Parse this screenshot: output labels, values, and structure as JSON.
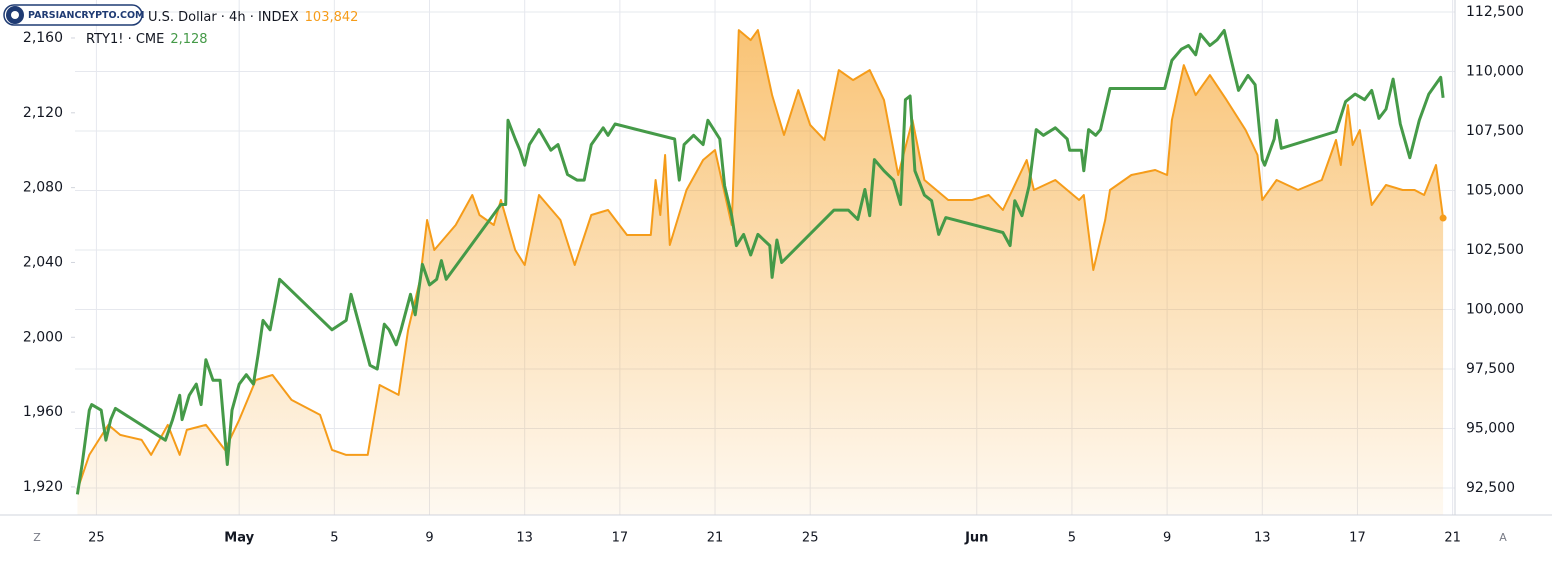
{
  "chart_data": {
    "type": "line",
    "watermark": "PARSIANCRYPTO.COM",
    "scale_buttons": [
      "Z",
      "A"
    ],
    "xlim": [
      -0.9,
      57.1
    ],
    "xticks": [
      {
        "value": 0,
        "label": "25"
      },
      {
        "value": 6,
        "label": "May"
      },
      {
        "value": 10,
        "label": "5"
      },
      {
        "value": 14,
        "label": "9"
      },
      {
        "value": 18,
        "label": "13"
      },
      {
        "value": 22,
        "label": "17"
      },
      {
        "value": 26,
        "label": "21"
      },
      {
        "value": 30,
        "label": "25"
      },
      {
        "value": 37,
        "label": "Jun"
      },
      {
        "value": 41,
        "label": "5"
      },
      {
        "value": 45,
        "label": "9"
      },
      {
        "value": 49,
        "label": "13"
      },
      {
        "value": 53,
        "label": "17"
      },
      {
        "value": 57,
        "label": "21"
      }
    ],
    "ylim": [
      1905,
      2180.3
    ],
    "yticks": [
      {
        "value": 1920,
        "label": "1,920"
      },
      {
        "value": 1960,
        "label": "1,960"
      },
      {
        "value": 2000,
        "label": "2,000"
      },
      {
        "value": 2040,
        "label": "2,040"
      },
      {
        "value": 2080,
        "label": "2,080"
      },
      {
        "value": 2120,
        "label": "2,120"
      },
      {
        "value": 2160,
        "label": "2,160"
      }
    ],
    "y2lim": [
      91366,
      113004
    ],
    "y2ticks": [
      {
        "value": 92500,
        "label": "92,500"
      },
      {
        "value": 95000,
        "label": "95,000"
      },
      {
        "value": 97500,
        "label": "97,500"
      },
      {
        "value": 100000,
        "label": "100,000"
      },
      {
        "value": 102500,
        "label": "102,500"
      },
      {
        "value": 105000,
        "label": "105,000"
      },
      {
        "value": 107500,
        "label": "107,500"
      },
      {
        "value": 110000,
        "label": "110,000"
      },
      {
        "value": 112500,
        "label": "112,500"
      }
    ],
    "grid": true,
    "series": [
      {
        "name": "U.S. Dollar · 4h · INDEX",
        "color": "#f59c1a",
        "axis": "y2",
        "area": true,
        "last_value_label": "103,842",
        "x": [
          -0.8,
          -0.3,
          0.5,
          1.0,
          1.9,
          2.3,
          3.0,
          3.5,
          3.8,
          4.6,
          5.4,
          6.0,
          6.7,
          7.4,
          8.2,
          9.4,
          9.9,
          10.5,
          11.4,
          11.9,
          12.7,
          13.1,
          13.6,
          13.9,
          14.2,
          15.1,
          15.8,
          16.1,
          16.7,
          17.0,
          17.6,
          18.0,
          18.6,
          19.5,
          20.1,
          20.8,
          21.5,
          22.3,
          23.3,
          23.5,
          23.7,
          23.9,
          24.1,
          24.8,
          25.5,
          26.0,
          26.7,
          27.0,
          27.5,
          27.8,
          28.4,
          28.9,
          29.5,
          30.0,
          30.6,
          31.2,
          31.8,
          32.5,
          33.1,
          33.7,
          34.3,
          34.8,
          35.8,
          36.8,
          37.5,
          38.1,
          39.1,
          39.4,
          40.3,
          41.3,
          41.5,
          41.9,
          42.4,
          42.6,
          43.5,
          44.5,
          45.0,
          45.2,
          45.7,
          46.2,
          46.8,
          47.5,
          48.3,
          48.8,
          49.0,
          49.6,
          50.5,
          51.5,
          52.1,
          52.3,
          52.6,
          52.8,
          53.1,
          53.6,
          54.2,
          54.9,
          55.4,
          55.8,
          56.3,
          56.6
        ],
        "values": [
          92420,
          93890,
          95150,
          94730,
          94520,
          93890,
          95150,
          93890,
          94940,
          95150,
          94100,
          95360,
          97040,
          97250,
          96200,
          95570,
          94100,
          93890,
          93890,
          96830,
          96410,
          99140,
          101240,
          103760,
          102500,
          103550,
          104810,
          103970,
          103550,
          104600,
          102500,
          101870,
          104810,
          103760,
          101870,
          103970,
          104180,
          103130,
          103130,
          105440,
          103970,
          106490,
          102710,
          105020,
          106280,
          106700,
          103550,
          111740,
          111320,
          111740,
          109010,
          107330,
          109220,
          107750,
          107120,
          110060,
          109640,
          110060,
          108800,
          105650,
          107960,
          105440,
          104600,
          104600,
          104810,
          104180,
          106280,
          105020,
          105440,
          104600,
          104810,
          101660,
          103760,
          105020,
          105650,
          105860,
          105650,
          107960,
          110270,
          109010,
          109850,
          108800,
          107540,
          106490,
          104600,
          105440,
          105020,
          105440,
          107120,
          106070,
          108590,
          106910,
          107540,
          104390,
          105230,
          105020,
          105020,
          104810,
          106070,
          103842
        ]
      },
      {
        "name": "RTY1! · CME",
        "color": "#459a48",
        "area": false,
        "last_value_label": "2,128",
        "x": [
          -0.8,
          -0.6,
          -0.3,
          -0.2,
          0.2,
          0.4,
          0.6,
          0.8,
          2.9,
          3.2,
          3.5,
          3.6,
          3.9,
          4.2,
          4.4,
          4.6,
          4.9,
          5.2,
          5.5,
          5.7,
          6.0,
          6.3,
          6.6,
          6.8,
          7.0,
          7.3,
          7.7,
          9.9,
          10.5,
          10.7,
          11.1,
          11.5,
          11.8,
          12.1,
          12.3,
          12.6,
          12.8,
          13.2,
          13.4,
          13.7,
          14.0,
          14.3,
          14.5,
          14.7,
          17.0,
          17.2,
          17.3,
          17.6,
          17.8,
          18.0,
          18.2,
          18.6,
          19.1,
          19.4,
          19.8,
          20.2,
          20.5,
          20.8,
          21.3,
          21.5,
          21.8,
          24.3,
          24.5,
          24.7,
          25.1,
          25.5,
          25.7,
          26.2,
          26.4,
          26.7,
          26.9,
          27.2,
          27.5,
          27.8,
          28.3,
          28.4,
          28.6,
          28.8,
          31.0,
          31.6,
          32.0,
          32.3,
          32.5,
          32.7,
          33.1,
          33.5,
          33.8,
          34.0,
          34.2,
          34.4,
          34.8,
          35.1,
          35.4,
          35.7,
          38.1,
          38.4,
          38.6,
          38.9,
          39.2,
          39.5,
          39.8,
          40.3,
          40.8,
          40.9,
          41.4,
          41.5,
          41.7,
          42.0,
          42.2,
          42.6,
          44.9,
          45.2,
          45.6,
          45.9,
          46.2,
          46.4,
          46.8,
          47.1,
          47.4,
          47.7,
          48.0,
          48.4,
          48.7,
          49.0,
          49.1,
          49.5,
          49.6,
          49.8,
          52.1,
          52.5,
          52.9,
          53.3,
          53.6,
          53.9,
          54.2,
          54.5,
          54.8,
          55.2,
          55.6,
          56.0,
          56.5,
          56.6
        ],
        "values": [
          1916,
          1932,
          1961,
          1964,
          1961,
          1945,
          1956,
          1962,
          1945,
          1956,
          1969,
          1956,
          1969,
          1975,
          1964,
          1988,
          1977,
          1977,
          1932,
          1961,
          1975,
          1980,
          1975,
          1991,
          2009,
          2004,
          2031,
          2004,
          2009,
          2023,
          2004,
          1985,
          1983,
          2007,
          2004,
          1996,
          2004,
          2023,
          2012,
          2039,
          2028,
          2031,
          2041,
          2031,
          2071,
          2071,
          2116,
          2106,
          2100,
          2092,
          2103,
          2111,
          2100,
          2103,
          2087,
          2084,
          2084,
          2103,
          2112,
          2108,
          2114,
          2106,
          2084,
          2103,
          2108,
          2103,
          2116,
          2106,
          2081,
          2065,
          2049,
          2055,
          2044,
          2055,
          2049,
          2032,
          2052,
          2040,
          2068,
          2068,
          2063,
          2079,
          2065,
          2095,
          2089,
          2084,
          2071,
          2127,
          2129,
          2089,
          2076,
          2073,
          2055,
          2064,
          2056,
          2049,
          2073,
          2065,
          2081,
          2111,
          2108,
          2112,
          2106,
          2100,
          2100,
          2089,
          2111,
          2108,
          2111,
          2133,
          2133,
          2148,
          2154,
          2156,
          2151,
          2162,
          2156,
          2159,
          2164,
          2148,
          2132,
          2140,
          2135,
          2095,
          2092,
          2106,
          2116,
          2101,
          2110,
          2126,
          2130,
          2127,
          2132,
          2117,
          2122,
          2138,
          2114,
          2096,
          2116,
          2130,
          2139,
          2128
        ]
      }
    ]
  }
}
